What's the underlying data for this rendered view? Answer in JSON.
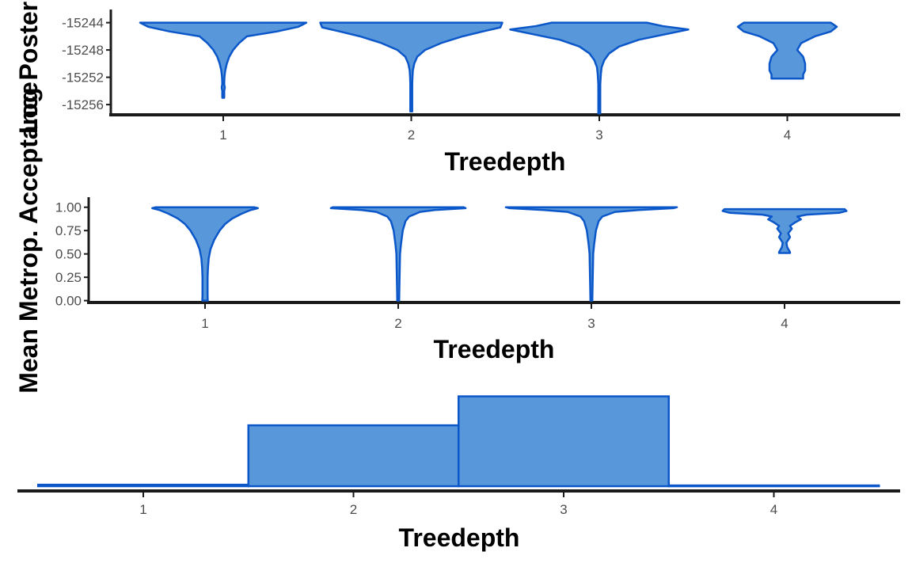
{
  "colors": {
    "fill": "#5898da",
    "stroke": "#0b57c9",
    "axis": "#1a1a1a"
  },
  "chart_data": [
    {
      "type": "violin",
      "xlabel": "Treedepth",
      "ylabel": "Log Posterior",
      "categories": [
        "1",
        "2",
        "3",
        "4"
      ],
      "yticks": [
        -15244,
        -15248,
        -15252,
        -15256
      ],
      "y_range": [
        -15257.5,
        -15243
      ],
      "series": [
        {
          "category": "1",
          "profile": [
            [
              -15244,
              0.42
            ],
            [
              -15244.6,
              0.38
            ],
            [
              -15245.3,
              0.27
            ],
            [
              -15246,
              0.12
            ],
            [
              -15247,
              0.08
            ],
            [
              -15248,
              0.05
            ],
            [
              -15249,
              0.03
            ],
            [
              -15250,
              0.018
            ],
            [
              -15251,
              0.01
            ],
            [
              -15252,
              0.006
            ],
            [
              -15253,
              0.004
            ],
            [
              -15253.5,
              0.008
            ],
            [
              -15254,
              0.003
            ],
            [
              -15254.6,
              0.005
            ],
            [
              -15255,
              0.002
            ]
          ]
        },
        {
          "category": "2",
          "profile": [
            [
              -15244,
              0.46
            ],
            [
              -15244.7,
              0.45
            ],
            [
              -15245.3,
              0.36
            ],
            [
              -15246,
              0.26
            ],
            [
              -15247,
              0.15
            ],
            [
              -15248,
              0.07
            ],
            [
              -15249,
              0.03
            ],
            [
              -15250,
              0.015
            ],
            [
              -15251,
              0.008
            ],
            [
              -15252,
              0.006
            ],
            [
              -15253,
              0.004
            ],
            [
              -15254,
              0.004
            ],
            [
              -15255,
              0.003
            ],
            [
              -15256,
              0.003
            ],
            [
              -15257,
              0.002
            ]
          ]
        },
        {
          "category": "3",
          "profile": [
            [
              -15244,
              0.24
            ],
            [
              -15244.5,
              0.32
            ],
            [
              -15245,
              0.45
            ],
            [
              -15245.6,
              0.35
            ],
            [
              -15246.5,
              0.2
            ],
            [
              -15247.5,
              0.1
            ],
            [
              -15248.5,
              0.05
            ],
            [
              -15249.5,
              0.025
            ],
            [
              -15250.5,
              0.012
            ],
            [
              -15251.5,
              0.008
            ],
            [
              -15253,
              0.005
            ],
            [
              -15254.5,
              0.004
            ],
            [
              -15256,
              0.003
            ],
            [
              -15257.3,
              0.002
            ]
          ]
        },
        {
          "category": "4",
          "profile": [
            [
              -15244,
              0.22
            ],
            [
              -15244.6,
              0.25
            ],
            [
              -15245.3,
              0.22
            ],
            [
              -15246,
              0.14
            ],
            [
              -15247,
              0.07
            ],
            [
              -15248,
              0.05
            ],
            [
              -15249,
              0.08
            ],
            [
              -15250,
              0.09
            ],
            [
              -15251,
              0.09
            ],
            [
              -15251.6,
              0.08
            ],
            [
              -15252.2,
              0.08
            ]
          ]
        }
      ]
    },
    {
      "type": "violin",
      "xlabel": "Treedepth",
      "ylabel": "Mean Metrop. Acceptance",
      "categories": [
        "1",
        "2",
        "3",
        "4"
      ],
      "yticks": [
        1.0,
        0.75,
        0.5,
        0.25,
        0.0
      ],
      "ytick_labels": [
        "1.00",
        "0.75",
        "0.50",
        "0.25",
        "0.00"
      ],
      "y_range": [
        -0.02,
        1.04
      ],
      "series": [
        {
          "category": "1",
          "profile": [
            [
              1.0,
              0.27
            ],
            [
              0.99,
              0.29
            ],
            [
              0.97,
              0.25
            ],
            [
              0.93,
              0.2
            ],
            [
              0.88,
              0.15
            ],
            [
              0.82,
              0.11
            ],
            [
              0.75,
              0.08
            ],
            [
              0.65,
              0.05
            ],
            [
              0.55,
              0.03
            ],
            [
              0.45,
              0.02
            ],
            [
              0.35,
              0.016
            ],
            [
              0.25,
              0.014
            ],
            [
              0.15,
              0.014
            ],
            [
              0.05,
              0.014
            ],
            [
              0.0,
              0.015
            ]
          ]
        },
        {
          "category": "2",
          "profile": [
            [
              1.0,
              0.36
            ],
            [
              0.99,
              0.37
            ],
            [
              0.97,
              0.2
            ],
            [
              0.95,
              0.12
            ],
            [
              0.9,
              0.06
            ],
            [
              0.85,
              0.04
            ],
            [
              0.75,
              0.025
            ],
            [
              0.6,
              0.015
            ],
            [
              0.5,
              0.01
            ],
            [
              0.3,
              0.008
            ],
            [
              0.1,
              0.006
            ],
            [
              0.0,
              0.005
            ]
          ]
        },
        {
          "category": "3",
          "profile": [
            [
              1.0,
              0.47
            ],
            [
              0.99,
              0.45
            ],
            [
              0.97,
              0.26
            ],
            [
              0.95,
              0.13
            ],
            [
              0.9,
              0.06
            ],
            [
              0.85,
              0.04
            ],
            [
              0.75,
              0.025
            ],
            [
              0.6,
              0.015
            ],
            [
              0.5,
              0.01
            ],
            [
              0.3,
              0.008
            ],
            [
              0.1,
              0.006
            ],
            [
              0.0,
              0.005
            ]
          ]
        },
        {
          "category": "4",
          "profile": [
            [
              0.98,
              0.33
            ],
            [
              0.96,
              0.34
            ],
            [
              0.94,
              0.3
            ],
            [
              0.92,
              0.12
            ],
            [
              0.9,
              0.07
            ],
            [
              0.87,
              0.09
            ],
            [
              0.84,
              0.06
            ],
            [
              0.8,
              0.03
            ],
            [
              0.77,
              0.04
            ],
            [
              0.72,
              0.02
            ],
            [
              0.68,
              0.03
            ],
            [
              0.62,
              0.01
            ],
            [
              0.57,
              0.015
            ],
            [
              0.52,
              0.03
            ],
            [
              0.51,
              0.03
            ]
          ]
        }
      ]
    },
    {
      "type": "histogram",
      "xlabel": "Treedepth",
      "categories": [
        "1",
        "2",
        "3",
        "4"
      ],
      "values": [
        2,
        82,
        121,
        1
      ],
      "y_range": [
        0,
        128
      ]
    }
  ]
}
